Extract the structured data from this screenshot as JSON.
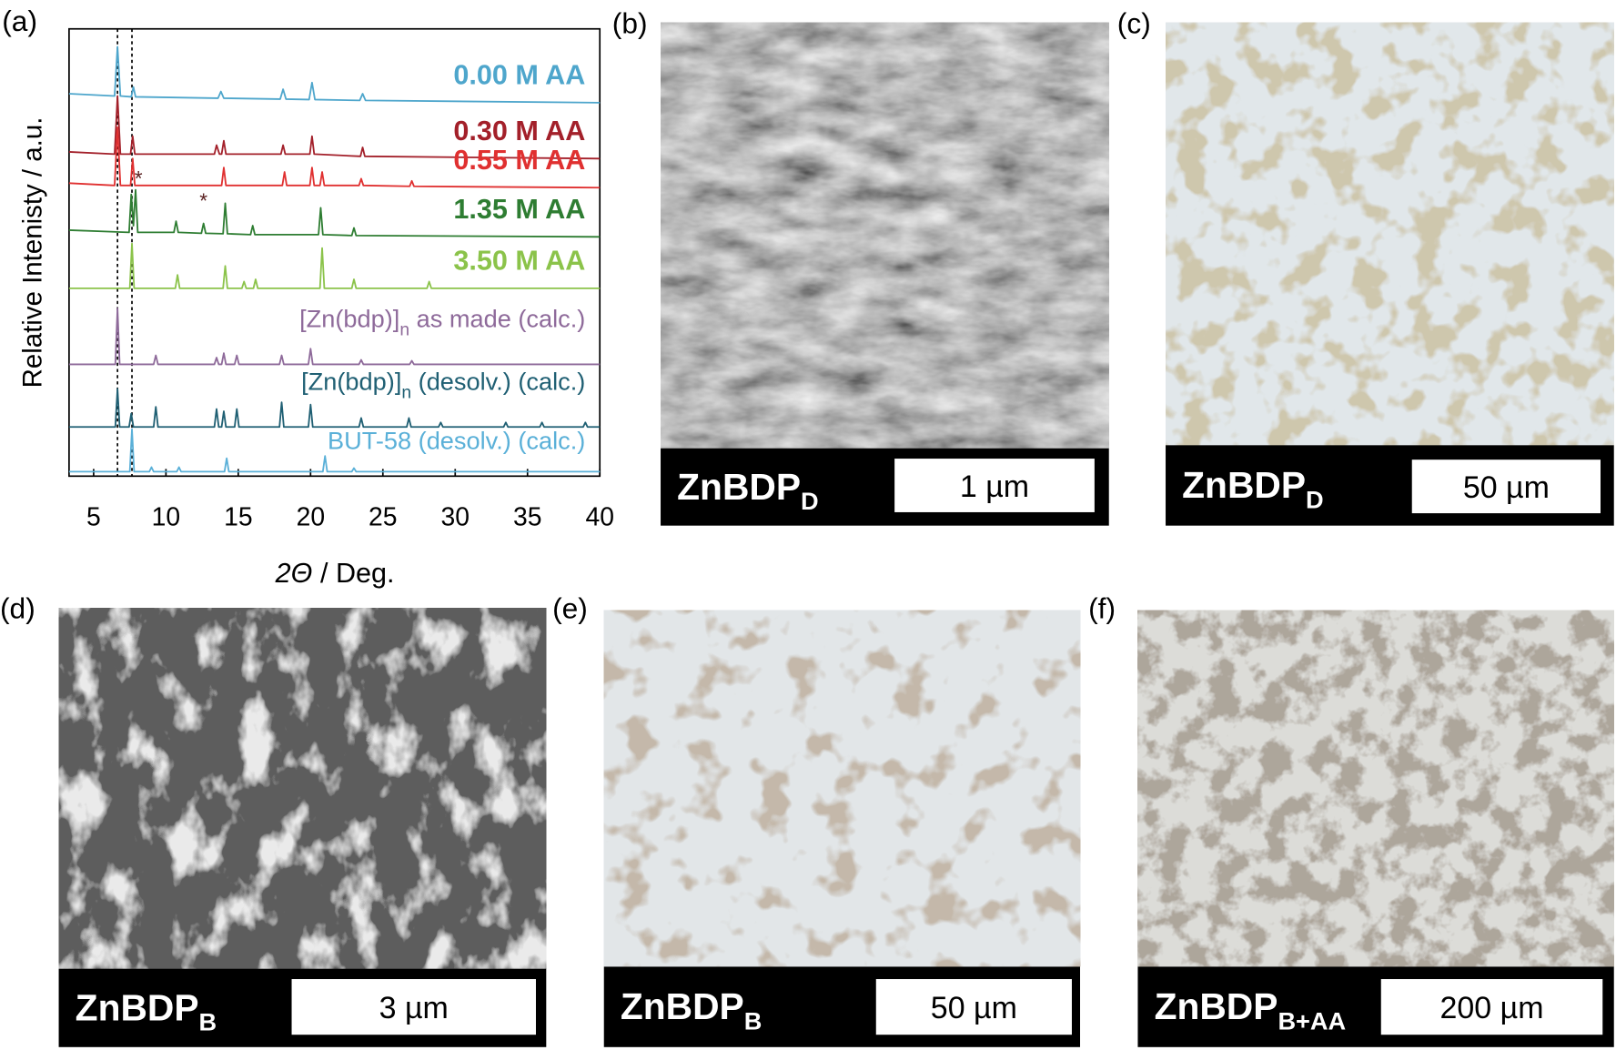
{
  "chart_data": {
    "type": "line",
    "panel_label": "(a)",
    "y_label": "Relative Intenisty / a.u.",
    "x_label": [
      "2Θ",
      " / Deg."
    ],
    "xlim": [
      3.3,
      40
    ],
    "xticks": [
      5,
      10,
      15,
      20,
      25,
      30,
      35,
      40
    ],
    "ylim": [
      0,
      100
    ],
    "reference_lines": [
      6.65,
      7.65
    ],
    "annotations": [
      {
        "text": "*",
        "x": 8.1,
        "y": 65
      },
      {
        "text": "*",
        "x": 12.6,
        "y": 60
      }
    ],
    "series": [
      {
        "name": "0.00 M AA",
        "color": "#4ea6cc",
        "bold": true,
        "x": [
          3.3,
          6.45,
          6.65,
          6.85,
          7.6,
          7.75,
          7.9,
          13.6,
          13.8,
          14.0,
          17.9,
          18.1,
          18.3,
          19.9,
          20.1,
          20.3,
          23.4,
          23.6,
          23.8,
          40
        ],
        "values": [
          85.5,
          85,
          96,
          85,
          84.8,
          87,
          84.8,
          84.5,
          86,
          84.5,
          84.3,
          86.5,
          84.3,
          84.2,
          88,
          84.2,
          84,
          85.5,
          84,
          83.5
        ]
      },
      {
        "name": "0.30 M AA",
        "color": "#a3202a",
        "bold": true,
        "x": [
          3.3,
          6.45,
          6.65,
          6.85,
          7.55,
          7.7,
          7.85,
          13.35,
          13.5,
          13.7,
          13.85,
          14.0,
          14.15,
          17.95,
          18.1,
          18.25,
          19.95,
          20.1,
          20.25,
          23.45,
          23.6,
          23.75,
          40
        ],
        "values": [
          72.5,
          72,
          85,
          72,
          72,
          76,
          72,
          72,
          74,
          72,
          72,
          75,
          72,
          72,
          74,
          72,
          72,
          76,
          72,
          71.5,
          73.5,
          71.5,
          71
        ]
      },
      {
        "name": "0.55 M AA",
        "color": "#e03030",
        "bold": true,
        "x": [
          3.3,
          6.45,
          6.65,
          6.85,
          7.55,
          7.7,
          7.85,
          13.85,
          14.0,
          14.15,
          18.05,
          18.2,
          18.35,
          19.95,
          20.1,
          20.25,
          20.65,
          20.8,
          20.95,
          23.35,
          23.5,
          23.65,
          26.85,
          27.0,
          27.15,
          40
        ],
        "values": [
          65.5,
          65,
          78,
          65,
          65,
          71,
          65,
          65,
          69,
          65,
          65,
          68,
          65,
          65,
          69,
          65,
          65,
          68,
          65,
          65,
          66.5,
          65,
          64.8,
          66,
          64.8,
          64.5
        ]
      },
      {
        "name": "1.35 M AA",
        "color": "#2e7d32",
        "bold": true,
        "x": [
          3.3,
          7.45,
          7.6,
          7.75,
          7.9,
          8.05,
          10.55,
          10.7,
          10.85,
          12.45,
          12.6,
          12.75,
          13.95,
          14.1,
          14.25,
          15.85,
          16.0,
          16.15,
          20.55,
          20.7,
          20.85,
          22.85,
          23.0,
          23.15,
          40
        ],
        "values": [
          55,
          54.5,
          63,
          56,
          64,
          54.5,
          54.5,
          57,
          54.5,
          54.3,
          56.5,
          54.3,
          54.2,
          61,
          54.2,
          54,
          56,
          54,
          54,
          60,
          54,
          53.8,
          55.5,
          53.8,
          53.5
        ]
      },
      {
        "name": "3.50 M AA",
        "color": "#8bc34a",
        "bold": true,
        "x": [
          3.3,
          7.5,
          7.65,
          7.8,
          10.65,
          10.8,
          10.95,
          13.95,
          14.1,
          14.25,
          15.25,
          15.4,
          15.55,
          16.05,
          16.2,
          16.35,
          20.65,
          20.8,
          20.95,
          22.85,
          23.0,
          23.15,
          28.05,
          28.2,
          28.35,
          40
        ],
        "values": [
          42,
          42,
          52,
          42,
          42,
          45,
          42,
          42,
          47,
          42,
          42,
          43.5,
          42,
          42,
          44,
          42,
          42,
          51,
          42,
          42,
          44,
          42,
          42,
          43.5,
          42,
          42
        ]
      },
      {
        "name": [
          "[Zn(bdp)]",
          "n",
          " as made (calc.)"
        ],
        "color": "#8e6a9a",
        "bold": false,
        "x": [
          3.3,
          6.5,
          6.65,
          6.8,
          9.15,
          9.3,
          9.45,
          13.35,
          13.5,
          13.65,
          13.85,
          14.0,
          14.15,
          14.75,
          14.9,
          15.05,
          17.85,
          18.0,
          18.15,
          19.85,
          20.0,
          20.15,
          23.35,
          23.5,
          23.65,
          26.85,
          27.0,
          27.15,
          40
        ],
        "values": [
          25,
          25,
          37.5,
          25,
          25,
          27,
          25,
          25,
          26.5,
          25,
          25,
          27.5,
          25,
          25,
          27,
          25,
          25,
          27,
          25,
          25,
          28.5,
          25,
          25,
          26,
          25,
          25,
          25.8,
          25,
          25
        ]
      },
      {
        "name": [
          "[Zn(bdp)]",
          "n",
          " (desolv.) (calc.)"
        ],
        "color": "#1f5f73",
        "bold": false,
        "x": [
          3.3,
          6.5,
          6.65,
          6.8,
          7.45,
          7.6,
          7.75,
          9.15,
          9.3,
          9.45,
          13.35,
          13.5,
          13.65,
          13.85,
          14.0,
          14.15,
          14.75,
          14.9,
          15.05,
          17.85,
          18.0,
          18.15,
          19.85,
          20.0,
          20.15,
          23.35,
          23.5,
          23.65,
          26.65,
          26.8,
          26.95,
          28.85,
          29.0,
          29.15,
          33.35,
          33.5,
          33.65,
          35.85,
          36.0,
          36.15,
          38.85,
          39.0,
          39.15,
          40
        ],
        "values": [
          11,
          11,
          19.5,
          11,
          11,
          14,
          11,
          11,
          15.5,
          11,
          11,
          15,
          11,
          11,
          14.5,
          11,
          11,
          15,
          11,
          11,
          16.5,
          11,
          11,
          16,
          11,
          11,
          13,
          11,
          11,
          13,
          11,
          11,
          12,
          11,
          11,
          12,
          11,
          11,
          12,
          11,
          11,
          12,
          11,
          11
        ]
      },
      {
        "name": "BUT-58 (desolv.) (calc.)",
        "color": "#5ab0d8",
        "bold": false,
        "x": [
          3.3,
          7.5,
          7.65,
          7.8,
          8.85,
          9.0,
          9.15,
          10.75,
          10.9,
          11.05,
          14.05,
          14.2,
          14.35,
          20.85,
          21.0,
          21.15,
          22.85,
          23.0,
          23.15,
          40
        ],
        "values": [
          1,
          1,
          10.5,
          1,
          1,
          2,
          1,
          1,
          2,
          1,
          1,
          4,
          1,
          1,
          4.5,
          1,
          1,
          1.8,
          1,
          1
        ]
      }
    ]
  },
  "panels": [
    {
      "label": "(b)",
      "caption": [
        "ZnBDP",
        "D"
      ],
      "scale_bar": "1 µm"
    },
    {
      "label": "(c)",
      "caption": [
        "ZnBDP",
        "D"
      ],
      "scale_bar": "50 µm"
    },
    {
      "label": "(d)",
      "caption": [
        "ZnBDP",
        "B"
      ],
      "scale_bar": "3 µm"
    },
    {
      "label": "(e)",
      "caption": [
        "ZnBDP",
        "B"
      ],
      "scale_bar": "50 µm"
    },
    {
      "label": "(f)",
      "caption": [
        "ZnBDP",
        "B+AA"
      ],
      "scale_bar": "200 µm"
    }
  ]
}
